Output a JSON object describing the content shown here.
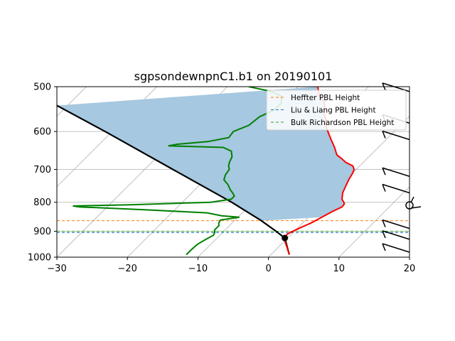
{
  "chart_data": {
    "type": "line",
    "title": "sgpsondewnpnC1.b1 on 20190101",
    "xlabel": "",
    "ylabel": "",
    "xlim": [
      -30,
      20
    ],
    "ylim": [
      1000,
      500
    ],
    "y_scale": "log",
    "skew": true,
    "grid": true,
    "x_ticks": [
      -30,
      -20,
      -10,
      0,
      10,
      20
    ],
    "x_tick_labels": [
      "−30",
      "−20",
      "−10",
      "0",
      "10",
      "20"
    ],
    "y_ticks": [
      500,
      600,
      700,
      800,
      900,
      1000
    ],
    "y_tick_labels": [
      "500",
      "600",
      "700",
      "800",
      "900",
      "1000"
    ],
    "legend_position": "top-right",
    "pbl_lines": [
      {
        "name": "Heffter PBL Height",
        "pressure": 862,
        "color": "#ff7f0e"
      },
      {
        "name": "Liu & Liang PBL Height",
        "pressure": 905,
        "color": "#1f77b4"
      },
      {
        "name": "Bulk Richardson PBL Height",
        "pressure": 900,
        "color": "#2ca02c"
      }
    ],
    "temperature": {
      "color": "#ff0000",
      "points": [
        [
          990,
          2.6
        ],
        [
          960,
          1.2
        ],
        [
          940,
          0.2
        ],
        [
          925,
          -0.4
        ],
        [
          910,
          -0.6
        ],
        [
          890,
          0.2
        ],
        [
          870,
          1.2
        ],
        [
          850,
          1.9
        ],
        [
          830,
          2.6
        ],
        [
          815,
          3.3
        ],
        [
          805,
          3.2
        ],
        [
          800,
          2.9
        ],
        [
          790,
          2.2
        ],
        [
          770,
          1.4
        ],
        [
          750,
          0.9
        ],
        [
          730,
          0.4
        ],
        [
          710,
          0.0
        ],
        [
          700,
          -0.3
        ],
        [
          690,
          -1.0
        ],
        [
          680,
          -2.5
        ],
        [
          670,
          -3.6
        ],
        [
          660,
          -4.8
        ],
        [
          650,
          -5.5
        ],
        [
          640,
          -6.2
        ],
        [
          620,
          -7.8
        ],
        [
          600,
          -9.4
        ],
        [
          585,
          -10.6
        ],
        [
          570,
          -11.5
        ],
        [
          560,
          -12.3
        ],
        [
          550,
          -13.0
        ],
        [
          540,
          -13.5
        ],
        [
          530,
          -14.3
        ],
        [
          520,
          -15.6
        ],
        [
          510,
          -16.4
        ],
        [
          500,
          -17.2
        ]
      ]
    },
    "dewpoint": {
      "color": "#008000",
      "points": [
        [
          990,
          -12.0
        ],
        [
          970,
          -12.0
        ],
        [
          950,
          -11.9
        ],
        [
          930,
          -11.4
        ],
        [
          915,
          -10.9
        ],
        [
          905,
          -11.1
        ],
        [
          895,
          -11.5
        ],
        [
          880,
          -11.5
        ],
        [
          870,
          -11.9
        ],
        [
          860,
          -12.1
        ],
        [
          850,
          -9.8
        ],
        [
          845,
          -12.5
        ],
        [
          835,
          -15.0
        ],
        [
          825,
          -24.0
        ],
        [
          815,
          -34.0
        ],
        [
          812,
          -35.0
        ],
        [
          808,
          -27.0
        ],
        [
          800,
          -16.0
        ],
        [
          790,
          -13.5
        ],
        [
          780,
          -13.5
        ],
        [
          770,
          -14.2
        ],
        [
          760,
          -15.0
        ],
        [
          745,
          -16.0
        ],
        [
          730,
          -17.3
        ],
        [
          715,
          -17.8
        ],
        [
          700,
          -18.0
        ],
        [
          690,
          -18.6
        ],
        [
          680,
          -19.0
        ],
        [
          665,
          -19.4
        ],
        [
          650,
          -20.3
        ],
        [
          640,
          -22.0
        ],
        [
          636,
          -30.0
        ],
        [
          632,
          -29.0
        ],
        [
          625,
          -25.0
        ],
        [
          615,
          -22.6
        ],
        [
          600,
          -22.8
        ],
        [
          585,
          -21.5
        ],
        [
          565,
          -21.2
        ],
        [
          550,
          -20.1
        ],
        [
          535,
          -20.0
        ],
        [
          520,
          -21.0
        ],
        [
          510,
          -23.0
        ],
        [
          500,
          -27.0
        ]
      ]
    },
    "parcel": {
      "color": "#000000",
      "points": [
        [
          990,
          2.6
        ],
        [
          925,
          -0.4
        ],
        [
          900,
          -2.6
        ],
        [
          862,
          -6.2
        ],
        [
          800,
          -13.0
        ],
        [
          700,
          -26.0
        ],
        [
          600,
          -41.0
        ],
        [
          540,
          -51.5
        ]
      ]
    },
    "cape_fill_color": "#a6c8e0",
    "lcl_point": {
      "pressure": 925,
      "temperature": -0.4
    },
    "wind_barbs": [
      {
        "pressure": 980,
        "style": "barb"
      },
      {
        "pressure": 930,
        "style": "barb"
      },
      {
        "pressure": 890,
        "style": "barb"
      },
      {
        "pressure": 810,
        "style": "calm-circle"
      },
      {
        "pressure": 770,
        "style": "barb"
      },
      {
        "pressure": 720,
        "style": "barb"
      },
      {
        "pressure": 620,
        "style": "barb"
      },
      {
        "pressure": 580,
        "style": "barb"
      },
      {
        "pressure": 510,
        "style": "barb"
      }
    ]
  }
}
